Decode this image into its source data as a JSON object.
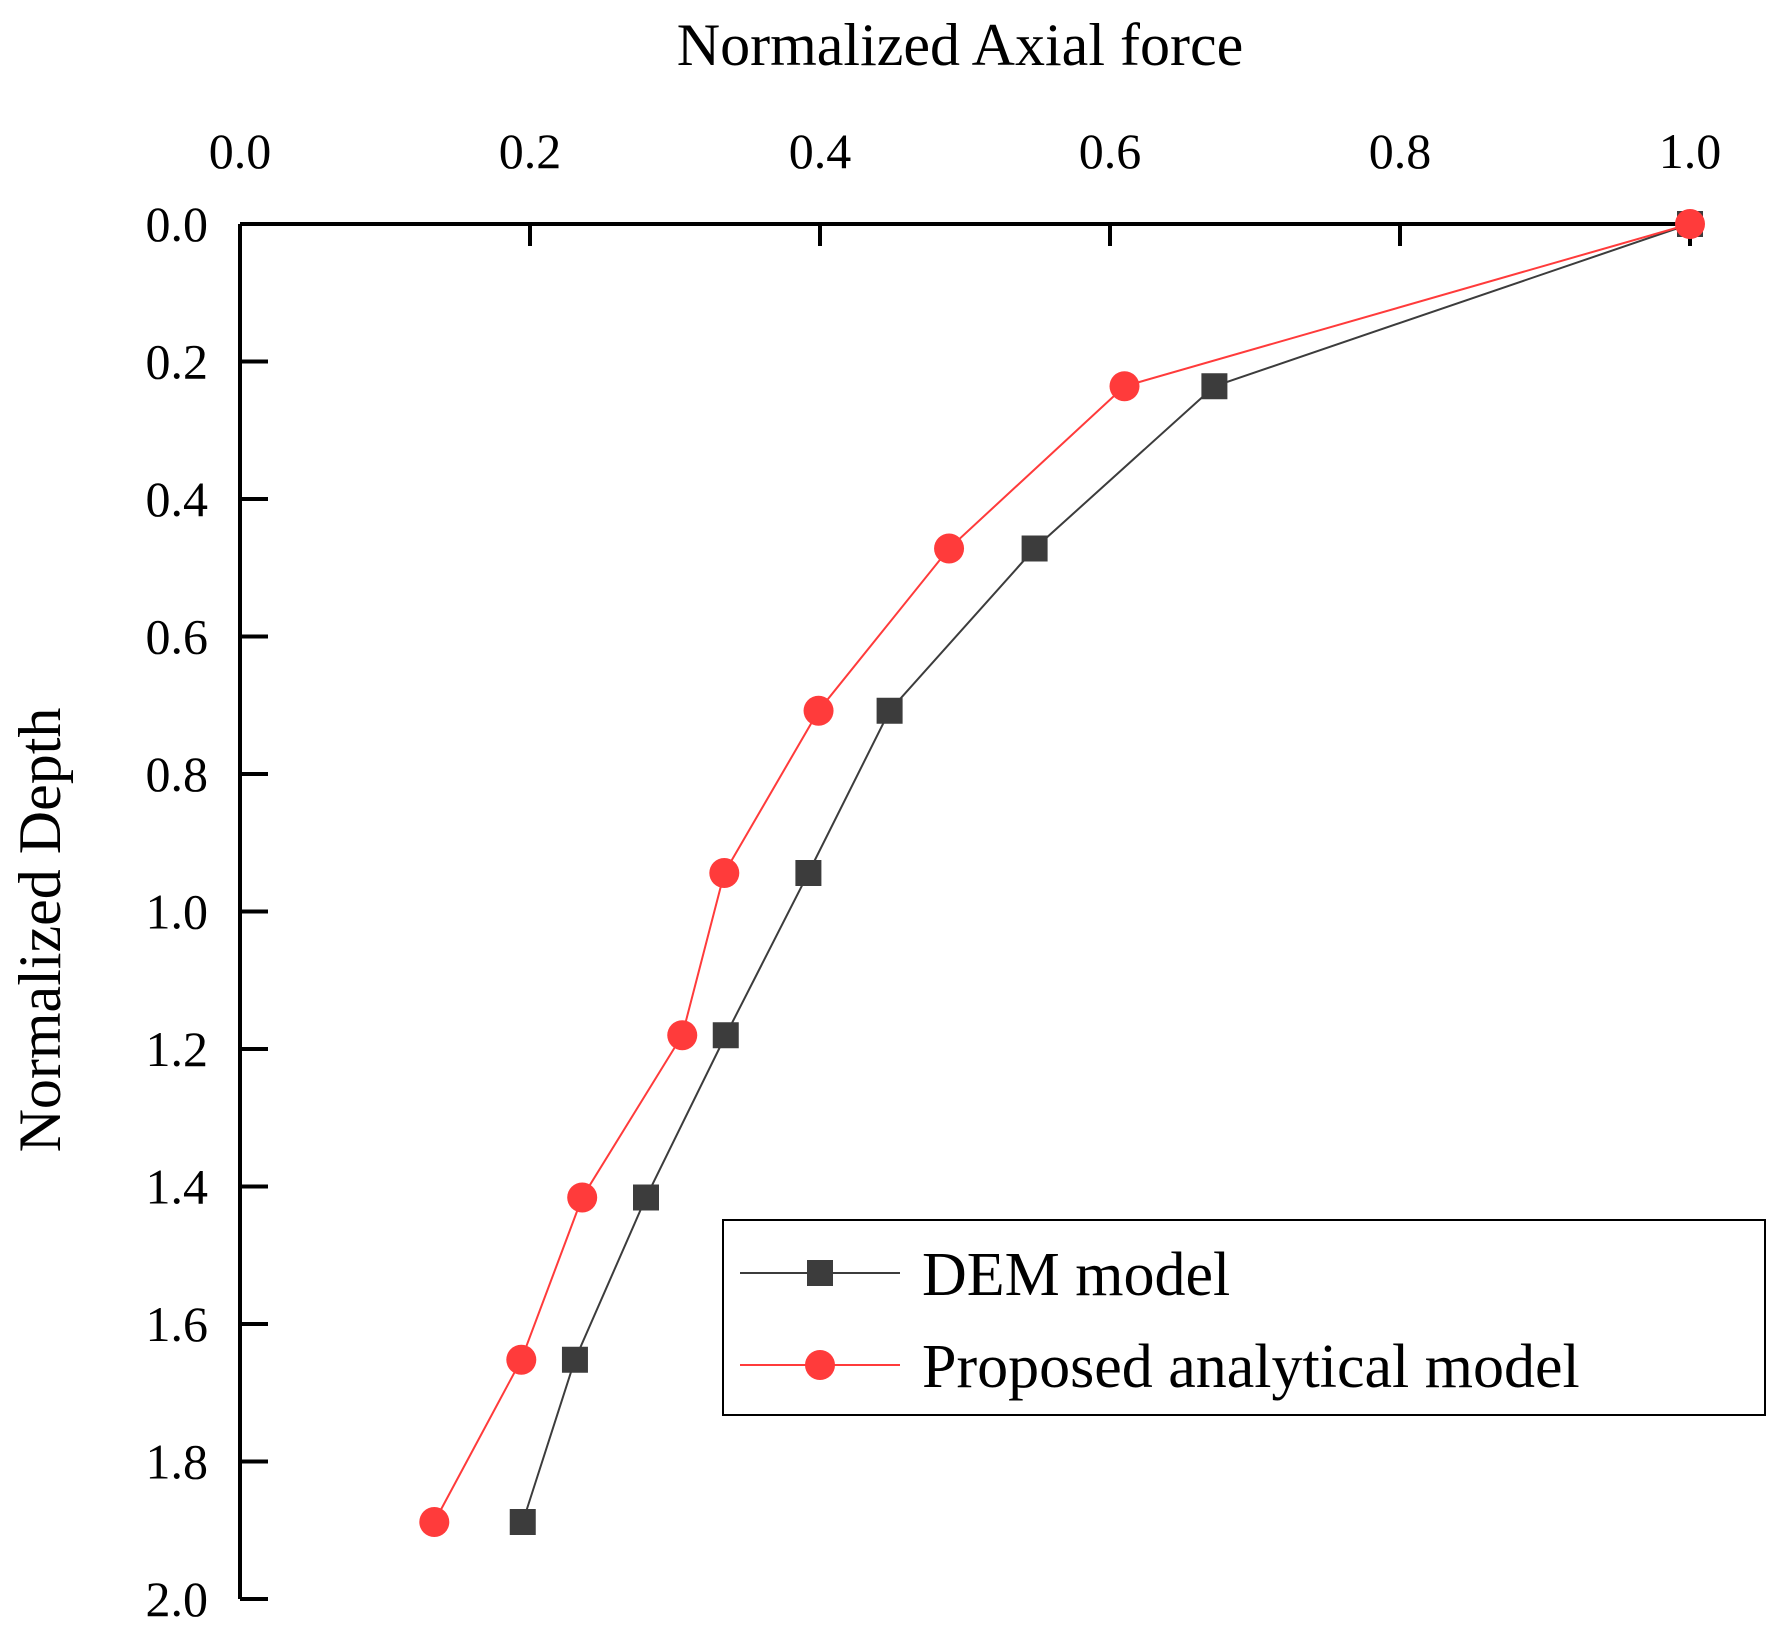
{
  "chart_data": {
    "type": "line",
    "title": "Normalized Axial force",
    "xlabel": "Normalized Axial force",
    "ylabel": "Normalized Depth",
    "xlim": [
      0.0,
      1.0
    ],
    "ylim": [
      0.0,
      2.0
    ],
    "x_axis_position": "top",
    "y_axis_inverted": true,
    "x_ticks": [
      "0.0",
      "0.2",
      "0.4",
      "0.6",
      "0.8",
      "1.0"
    ],
    "y_ticks": [
      "0.0",
      "0.2",
      "0.4",
      "0.6",
      "0.8",
      "1.0",
      "1.2",
      "1.4",
      "1.6",
      "1.8",
      "2.0"
    ],
    "grid": false,
    "legend_position": "lower-right",
    "series": [
      {
        "name": "DEM model",
        "marker": "square",
        "color": "#3c3c3c",
        "points": [
          {
            "x": 1.0,
            "y": 0.0
          },
          {
            "x": 0.672,
            "y": 0.236
          },
          {
            "x": 0.548,
            "y": 0.472
          },
          {
            "x": 0.448,
            "y": 0.708
          },
          {
            "x": 0.392,
            "y": 0.944
          },
          {
            "x": 0.335,
            "y": 1.18
          },
          {
            "x": 0.28,
            "y": 1.416
          },
          {
            "x": 0.231,
            "y": 1.652
          },
          {
            "x": 0.195,
            "y": 1.888
          }
        ]
      },
      {
        "name": "Proposed analytical model",
        "marker": "circle",
        "color": "#ff3b3b",
        "points": [
          {
            "x": 1.0,
            "y": 0.0
          },
          {
            "x": 0.61,
            "y": 0.236
          },
          {
            "x": 0.489,
            "y": 0.472
          },
          {
            "x": 0.399,
            "y": 0.708
          },
          {
            "x": 0.334,
            "y": 0.944
          },
          {
            "x": 0.305,
            "y": 1.18
          },
          {
            "x": 0.236,
            "y": 1.416
          },
          {
            "x": 0.194,
            "y": 1.652
          },
          {
            "x": 0.134,
            "y": 1.888
          }
        ]
      }
    ]
  }
}
